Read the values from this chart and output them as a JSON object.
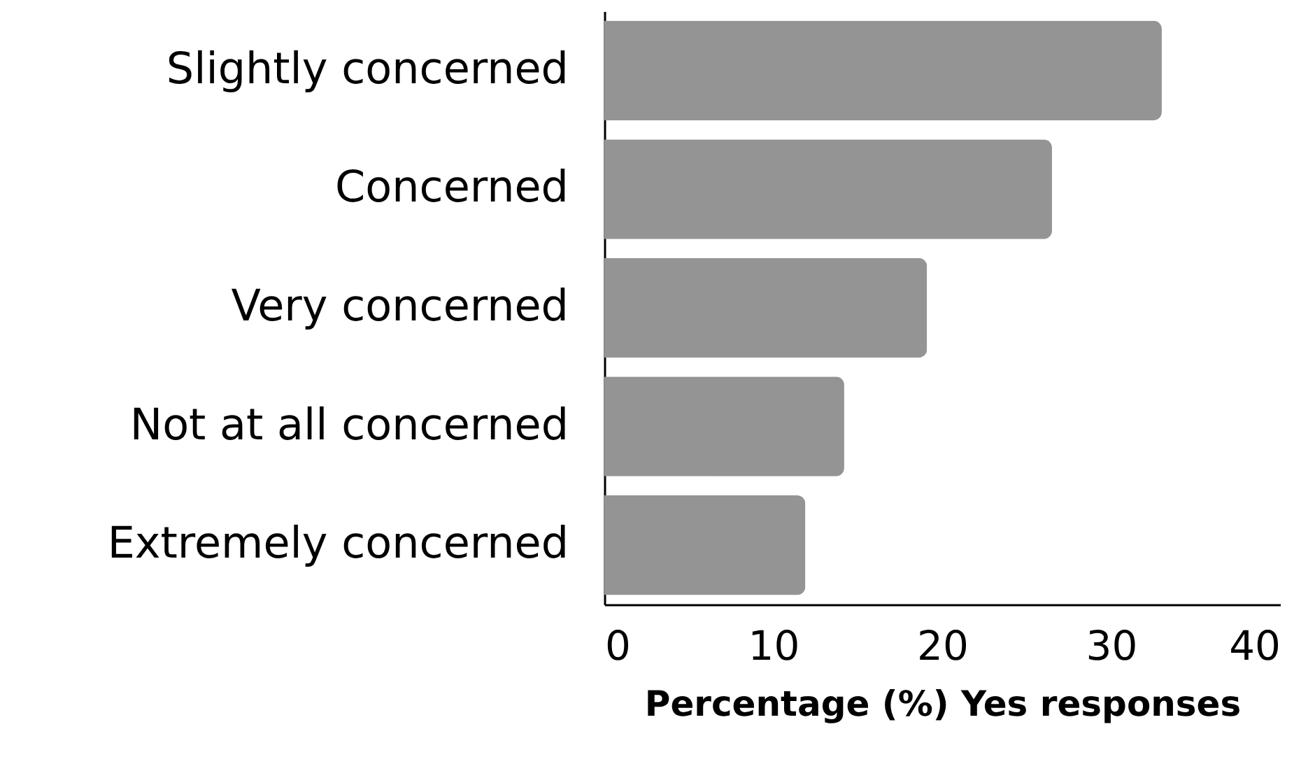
{
  "chart_data": {
    "type": "bar",
    "orientation": "horizontal",
    "xlabel": "Percentage (%) Yes responses",
    "categories": [
      "Slightly concerned",
      "Concerned",
      "Very concerned",
      "Not at all concerned",
      "Extremely concerned"
    ],
    "values": [
      33.0,
      26.5,
      19.1,
      14.2,
      11.9
    ],
    "color": "#949494",
    "xlim": [
      0,
      40
    ],
    "xticks": [
      0,
      10,
      20,
      30,
      40
    ],
    "grid": false
  }
}
